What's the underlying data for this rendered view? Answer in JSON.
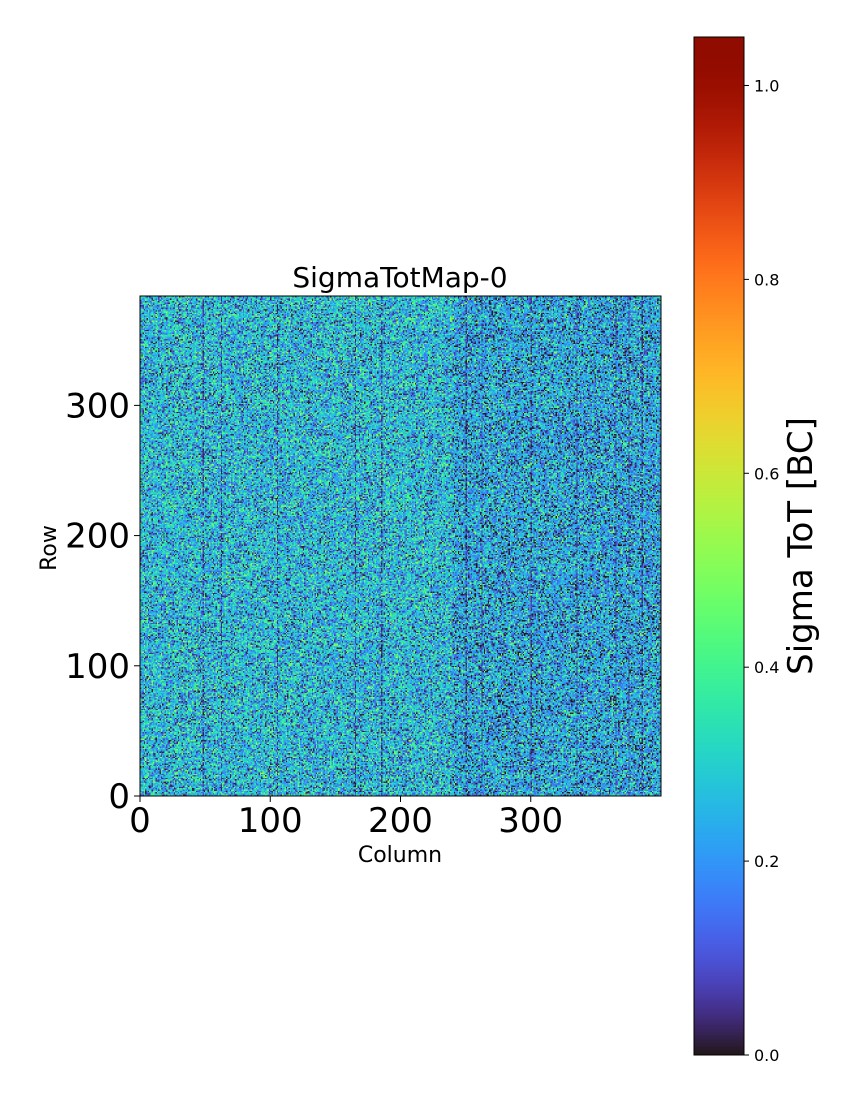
{
  "chart_data": {
    "type": "heatmap",
    "title": "SigmaTotMap-0",
    "xlabel": "Column",
    "ylabel": "Row",
    "xlim": [
      0,
      400
    ],
    "ylim": [
      0,
      384
    ],
    "x_ticks": [
      0,
      100,
      200,
      300
    ],
    "y_ticks": [
      0,
      100,
      200,
      300
    ],
    "x_tick_labels": [
      "0",
      "100",
      "200",
      "300"
    ],
    "y_tick_labels": [
      "0",
      "100",
      "200",
      "300"
    ],
    "grid": {
      "columns": 400,
      "rows": 384
    },
    "colormap": "turbo",
    "colorbar": {
      "label": "Sigma ToT [BC]",
      "range": [
        0.0,
        1.05
      ],
      "ticks": [
        0.0,
        0.2,
        0.4,
        0.6,
        0.8,
        1.0
      ],
      "tick_labels": [
        "0.0",
        "0.2",
        "0.4",
        "0.6",
        "0.8",
        "1.0"
      ]
    },
    "value_distribution": {
      "typical_range": [
        0.0,
        0.5
      ],
      "mean_approx": 0.27,
      "darker_column_bands_x": [
        48,
        62,
        105,
        165,
        185,
        250,
        262,
        300,
        335,
        365,
        375,
        385
      ],
      "darker_region_x_from": 240
    }
  }
}
